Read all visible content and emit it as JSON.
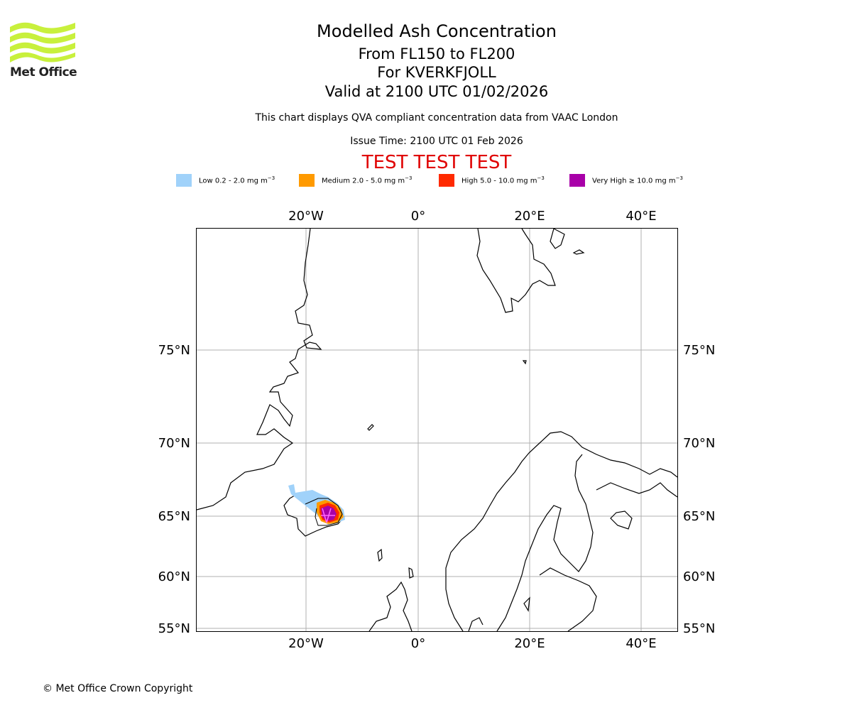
{
  "logo": {
    "text": "Met Office",
    "color": "#c8f03c"
  },
  "header": {
    "title": "Modelled Ash Concentration",
    "levels": "From FL150 to FL200",
    "volcano": "For KVERKFJOLL",
    "valid": "Valid at 2100 UTC 01/02/2026",
    "note": "This chart displays QVA compliant concentration data from VAAC London",
    "issue_time": "Issue Time: 2100 UTC 01 Feb 2026",
    "test_banner": "TEST TEST TEST",
    "test_color": "#e00000"
  },
  "legend": [
    {
      "label": "Low 0.2 - 2.0 mg m",
      "exp": "−3",
      "color": "#a0d2fa"
    },
    {
      "label": "Medium 2.0 - 5.0 mg m",
      "exp": "−3",
      "color": "#ff9a00"
    },
    {
      "label": "High 5.0 - 10.0 mg m",
      "exp": "−3",
      "color": "#ff2a00"
    },
    {
      "label": "Very High  ≥  10.0 mg m",
      "exp": "−3",
      "color": "#a800a8"
    }
  ],
  "map": {
    "lon_labels": [
      "20°W",
      "0°",
      "20°E",
      "40°E"
    ],
    "lat_labels": [
      "75°N",
      "70°N",
      "65°N",
      "60°N",
      "55°N"
    ],
    "gridline_color": "#b0b0b0"
  },
  "footer": {
    "copyright": "© Met Office Crown Copyright"
  }
}
